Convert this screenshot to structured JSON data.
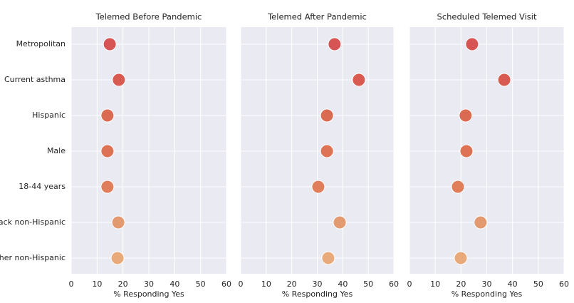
{
  "chart_data": [
    {
      "type": "dot",
      "title": "Telemed Before Pandemic",
      "xlabel": "% Responding Yes",
      "categories": [
        "Metropolitan",
        "Current asthma",
        "Hispanic",
        "Male",
        "18-44 years",
        "Black non-Hispanic",
        "Other non-Hispanic"
      ],
      "values": [
        14.9,
        18.4,
        14.0,
        14.0,
        14.0,
        18.2,
        17.9
      ],
      "colors": [
        "#d65454",
        "#d85a50",
        "#db6a52",
        "#dd7255",
        "#e07d5a",
        "#e49a70",
        "#e8aa7b"
      ],
      "xlim": [
        0,
        60
      ],
      "xticks": [
        0,
        10,
        20,
        30,
        40,
        50,
        60
      ],
      "grid": true
    },
    {
      "type": "dot",
      "title": "Telemed After Pandemic",
      "xlabel": "% Responding Yes",
      "values": [
        36.8,
        46.3,
        33.8,
        33.8,
        30.4,
        38.8,
        34.3
      ],
      "colors": [
        "#d65454",
        "#d85a50",
        "#db6a52",
        "#dd7255",
        "#e07d5a",
        "#e49a70",
        "#e8aa7b"
      ],
      "xlim": [
        0,
        60
      ],
      "xticks": [
        0,
        10,
        20,
        30,
        40,
        50,
        60
      ],
      "grid": true
    },
    {
      "type": "dot",
      "title": "Scheduled Telemed Visit",
      "xlabel": "% Responding Yes",
      "values": [
        24.3,
        36.8,
        21.8,
        22.1,
        18.8,
        27.6,
        19.9
      ],
      "colors": [
        "#d65454",
        "#d85a50",
        "#db6a52",
        "#dd7255",
        "#e07d5a",
        "#e49a70",
        "#e8aa7b"
      ],
      "xlim": [
        0,
        60
      ],
      "xticks": [
        0,
        10,
        20,
        30,
        40,
        50,
        60
      ],
      "grid": true
    }
  ]
}
